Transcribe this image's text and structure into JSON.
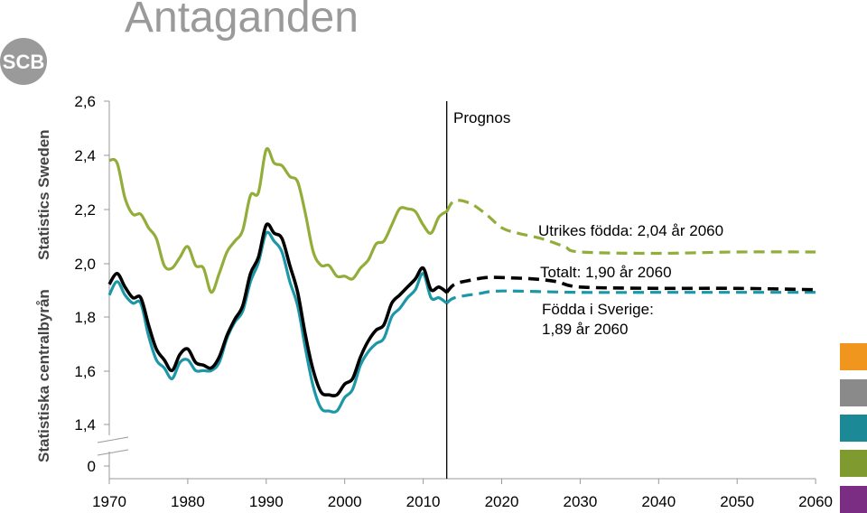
{
  "header": {
    "title": "Antaganden",
    "org_name_sv": "Statistiska centralbyrån",
    "org_name_en": "Statistics Sweden",
    "logo_text": "SCB"
  },
  "colors": {
    "utrikes": "#92ad3a",
    "totalt": "#000000",
    "sverige": "#1b97a8",
    "swatches": [
      "#f0961e",
      "#8a8a8a",
      "#1b8a96",
      "#7f9a2e",
      "#7a2d82"
    ]
  },
  "chart_data": {
    "type": "line",
    "title": "",
    "xlabel": "",
    "ylabel": "",
    "xlim": [
      1970,
      2060
    ],
    "ylim": [
      1.3,
      2.6
    ],
    "y_axis_break": true,
    "x_ticks": [
      "1970",
      "1980",
      "1990",
      "2000",
      "2010",
      "2020",
      "2030",
      "2040",
      "2050",
      "2060"
    ],
    "y_ticks": [
      "2,6",
      "2,4",
      "2,2",
      "2,0",
      "1,8",
      "1,6",
      "1,4",
      "0"
    ],
    "y_tick_values": [
      2.6,
      2.4,
      2.2,
      2.0,
      1.8,
      1.6,
      1.4,
      1.3
    ],
    "grid": false,
    "prognos_line": {
      "x": 2013,
      "label": "Prognos"
    },
    "annotations": [
      {
        "text": "Utrikes födda: 2,04 år 2060"
      },
      {
        "text": "Totalt: 1,90 år 2060"
      },
      {
        "text": "Födda i Sverige:"
      },
      {
        "text": "1,89 år 2060"
      }
    ],
    "series": [
      {
        "key": "utrikes",
        "historical": [
          [
            1970,
            2.38
          ],
          [
            1971,
            2.37
          ],
          [
            1972,
            2.24
          ],
          [
            1973,
            2.18
          ],
          [
            1974,
            2.18
          ],
          [
            1975,
            2.13
          ],
          [
            1976,
            2.09
          ],
          [
            1977,
            1.99
          ],
          [
            1978,
            1.98
          ],
          [
            1979,
            2.02
          ],
          [
            1980,
            2.06
          ],
          [
            1981,
            1.99
          ],
          [
            1982,
            1.98
          ],
          [
            1983,
            1.89
          ],
          [
            1984,
            1.96
          ],
          [
            1985,
            2.04
          ],
          [
            1986,
            2.08
          ],
          [
            1987,
            2.12
          ],
          [
            1988,
            2.25
          ],
          [
            1989,
            2.26
          ],
          [
            1990,
            2.42
          ],
          [
            1991,
            2.37
          ],
          [
            1992,
            2.36
          ],
          [
            1993,
            2.32
          ],
          [
            1994,
            2.3
          ],
          [
            1995,
            2.18
          ],
          [
            1996,
            2.04
          ],
          [
            1997,
            1.99
          ],
          [
            1998,
            1.99
          ],
          [
            1999,
            1.95
          ],
          [
            2000,
            1.95
          ],
          [
            2001,
            1.94
          ],
          [
            2002,
            1.98
          ],
          [
            2003,
            2.01
          ],
          [
            2004,
            2.07
          ],
          [
            2005,
            2.08
          ],
          [
            2006,
            2.14
          ],
          [
            2007,
            2.2
          ],
          [
            2008,
            2.2
          ],
          [
            2009,
            2.19
          ],
          [
            2010,
            2.14
          ],
          [
            2011,
            2.11
          ],
          [
            2012,
            2.17
          ],
          [
            2013,
            2.19
          ]
        ],
        "prognosis": [
          [
            2013,
            2.19
          ],
          [
            2014,
            2.23
          ],
          [
            2016,
            2.22
          ],
          [
            2018,
            2.18
          ],
          [
            2020,
            2.13
          ],
          [
            2022,
            2.11
          ],
          [
            2025,
            2.09
          ],
          [
            2028,
            2.06
          ],
          [
            2030,
            2.04
          ],
          [
            2040,
            2.035
          ],
          [
            2050,
            2.04
          ],
          [
            2060,
            2.04
          ]
        ]
      },
      {
        "key": "totalt",
        "historical": [
          [
            1970,
            1.92
          ],
          [
            1971,
            1.96
          ],
          [
            1972,
            1.91
          ],
          [
            1973,
            1.87
          ],
          [
            1974,
            1.87
          ],
          [
            1975,
            1.77
          ],
          [
            1976,
            1.68
          ],
          [
            1977,
            1.64
          ],
          [
            1978,
            1.6
          ],
          [
            1979,
            1.66
          ],
          [
            1980,
            1.68
          ],
          [
            1981,
            1.63
          ],
          [
            1982,
            1.62
          ],
          [
            1983,
            1.61
          ],
          [
            1984,
            1.65
          ],
          [
            1985,
            1.73
          ],
          [
            1986,
            1.79
          ],
          [
            1987,
            1.84
          ],
          [
            1988,
            1.96
          ],
          [
            1989,
            2.02
          ],
          [
            1990,
            2.14
          ],
          [
            1991,
            2.11
          ],
          [
            1992,
            2.09
          ],
          [
            1993,
            1.99
          ],
          [
            1994,
            1.89
          ],
          [
            1995,
            1.73
          ],
          [
            1996,
            1.6
          ],
          [
            1997,
            1.52
          ],
          [
            1998,
            1.51
          ],
          [
            1999,
            1.51
          ],
          [
            2000,
            1.55
          ],
          [
            2001,
            1.57
          ],
          [
            2002,
            1.65
          ],
          [
            2003,
            1.71
          ],
          [
            2004,
            1.75
          ],
          [
            2005,
            1.77
          ],
          [
            2006,
            1.85
          ],
          [
            2007,
            1.88
          ],
          [
            2008,
            1.91
          ],
          [
            2009,
            1.94
          ],
          [
            2010,
            1.98
          ],
          [
            2011,
            1.9
          ],
          [
            2012,
            1.91
          ],
          [
            2013,
            1.89
          ]
        ],
        "prognosis": [
          [
            2013,
            1.89
          ],
          [
            2014,
            1.92
          ],
          [
            2016,
            1.935
          ],
          [
            2018,
            1.945
          ],
          [
            2020,
            1.945
          ],
          [
            2024,
            1.94
          ],
          [
            2027,
            1.93
          ],
          [
            2030,
            1.91
          ],
          [
            2040,
            1.905
          ],
          [
            2050,
            1.905
          ],
          [
            2060,
            1.9
          ]
        ]
      },
      {
        "key": "sverige",
        "historical": [
          [
            1970,
            1.88
          ],
          [
            1971,
            1.93
          ],
          [
            1972,
            1.88
          ],
          [
            1973,
            1.85
          ],
          [
            1974,
            1.85
          ],
          [
            1975,
            1.73
          ],
          [
            1976,
            1.64
          ],
          [
            1977,
            1.61
          ],
          [
            1978,
            1.57
          ],
          [
            1979,
            1.63
          ],
          [
            1980,
            1.64
          ],
          [
            1981,
            1.6
          ],
          [
            1982,
            1.6
          ],
          [
            1983,
            1.6
          ],
          [
            1984,
            1.63
          ],
          [
            1985,
            1.72
          ],
          [
            1986,
            1.78
          ],
          [
            1987,
            1.82
          ],
          [
            1988,
            1.93
          ],
          [
            1989,
            2.0
          ],
          [
            1990,
            2.11
          ],
          [
            1991,
            2.08
          ],
          [
            1992,
            2.04
          ],
          [
            1993,
            1.93
          ],
          [
            1994,
            1.84
          ],
          [
            1995,
            1.68
          ],
          [
            1996,
            1.54
          ],
          [
            1997,
            1.46
          ],
          [
            1998,
            1.45
          ],
          [
            1999,
            1.45
          ],
          [
            2000,
            1.5
          ],
          [
            2001,
            1.53
          ],
          [
            2002,
            1.62
          ],
          [
            2003,
            1.67
          ],
          [
            2004,
            1.7
          ],
          [
            2005,
            1.72
          ],
          [
            2006,
            1.8
          ],
          [
            2007,
            1.83
          ],
          [
            2008,
            1.87
          ],
          [
            2009,
            1.9
          ],
          [
            2010,
            1.96
          ],
          [
            2011,
            1.87
          ],
          [
            2012,
            1.87
          ],
          [
            2013,
            1.85
          ]
        ],
        "prognosis": [
          [
            2013,
            1.85
          ],
          [
            2014,
            1.87
          ],
          [
            2017,
            1.885
          ],
          [
            2020,
            1.895
          ],
          [
            2030,
            1.89
          ],
          [
            2040,
            1.89
          ],
          [
            2050,
            1.89
          ],
          [
            2060,
            1.89
          ]
        ]
      }
    ]
  }
}
